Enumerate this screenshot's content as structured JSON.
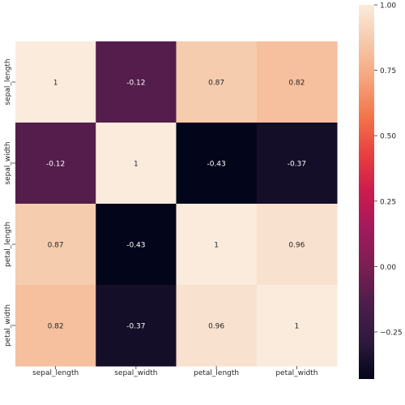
{
  "chart_data": {
    "type": "heatmap",
    "x_categories": [
      "sepal_length",
      "sepal_width",
      "petal_length",
      "petal_width"
    ],
    "y_categories": [
      "sepal_length",
      "sepal_width",
      "petal_length",
      "petal_width"
    ],
    "matrix": [
      [
        1,
        -0.12,
        0.87,
        0.82
      ],
      [
        -0.12,
        1,
        -0.43,
        -0.37
      ],
      [
        0.87,
        -0.43,
        1,
        0.96
      ],
      [
        0.82,
        -0.37,
        0.96,
        1
      ]
    ],
    "annotations": [
      [
        "1",
        "-0.12",
        "0.87",
        "0.82"
      ],
      [
        "-0.12",
        "1",
        "-0.43",
        "-0.37"
      ],
      [
        "0.87",
        "-0.43",
        "1",
        "0.96"
      ],
      [
        "0.82",
        "-0.37",
        "0.96",
        "1"
      ]
    ],
    "colorbar": {
      "range": [
        -0.43,
        1
      ],
      "ticks": [
        1.0,
        0.75,
        0.5,
        0.25,
        0.0,
        -0.25
      ],
      "tick_labels": [
        "1.00",
        "0.75",
        "0.50",
        "0.25",
        "0.00",
        "−0.25"
      ]
    },
    "colormap": "rocket",
    "colormap_stops": [
      "#03051a",
      "#2d1a3e",
      "#4c1d4b",
      "#7a1f52",
      "#a11a5b",
      "#cb1b4f",
      "#e83f3f",
      "#f3744a",
      "#f6a37a",
      "#f6c9aa",
      "#faebdd"
    ]
  }
}
